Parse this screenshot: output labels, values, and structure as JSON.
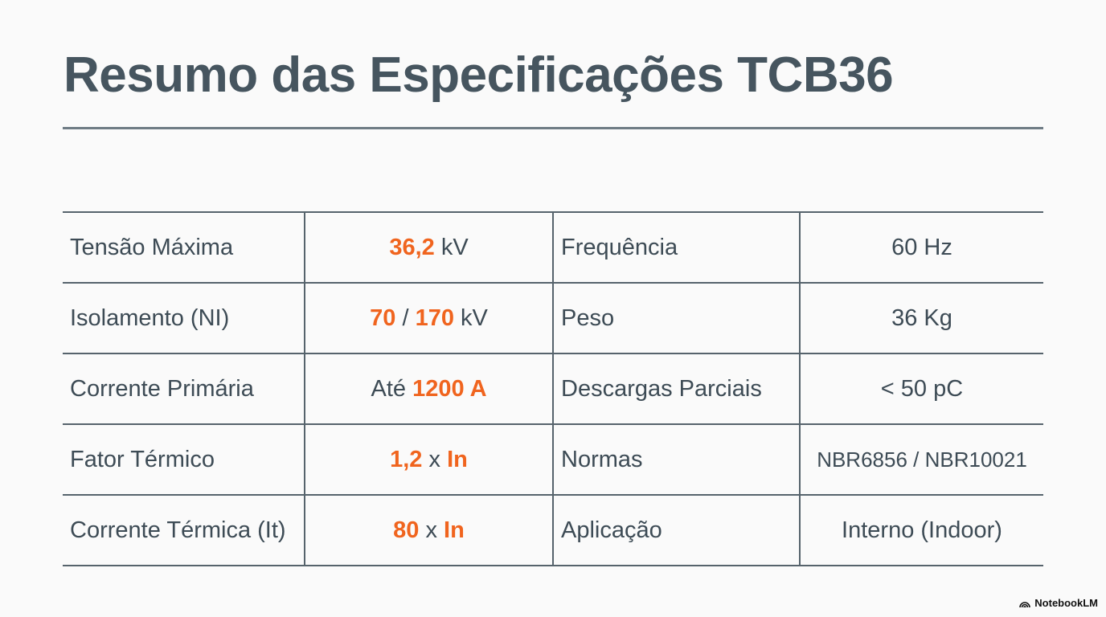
{
  "slide": {
    "title": "Resumo das Especificações TCB36"
  },
  "table": {
    "rows": [
      {
        "left_label": "Tensão Máxima",
        "left_value": [
          {
            "t": "36,2",
            "hl": true
          },
          {
            "t": " kV",
            "hl": false
          }
        ],
        "right_label": "Frequência",
        "right_value": "60 Hz"
      },
      {
        "left_label": "Isolamento (NI)",
        "left_value": [
          {
            "t": "70",
            "hl": true
          },
          {
            "t": " / ",
            "hl": false
          },
          {
            "t": "170",
            "hl": true
          },
          {
            "t": " kV",
            "hl": false
          }
        ],
        "right_label": "Peso",
        "right_value": "36 Kg"
      },
      {
        "left_label": "Corrente Primária",
        "left_value": [
          {
            "t": "Até ",
            "hl": false
          },
          {
            "t": "1200 A",
            "hl": true
          }
        ],
        "right_label": "Descargas Parciais",
        "right_value": "< 50 pC"
      },
      {
        "left_label": "Fator Térmico",
        "left_value": [
          {
            "t": "1,2",
            "hl": true
          },
          {
            "t": " x ",
            "hl": false
          },
          {
            "t": "In",
            "hl": true
          }
        ],
        "right_label": "Normas",
        "right_value": "NBR6856 / NBR10021"
      },
      {
        "left_label": "Corrente Térmica (It)",
        "left_value": [
          {
            "t": "80",
            "hl": true
          },
          {
            "t": " x ",
            "hl": false
          },
          {
            "t": "In",
            "hl": true
          }
        ],
        "right_label": "Aplicação",
        "right_value": "Interno (Indoor)"
      }
    ]
  },
  "footer": {
    "brand": "NotebookLM",
    "brand_icon": "notebooklm-logo-icon"
  },
  "colors": {
    "title": "#46555f",
    "text": "#3d4b55",
    "accent": "#f0641e",
    "rule": "#56636c"
  }
}
